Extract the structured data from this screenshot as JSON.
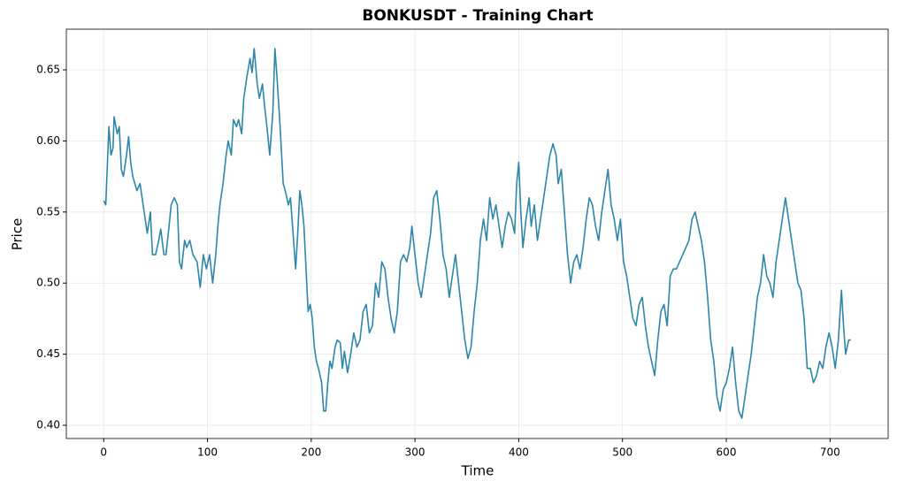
{
  "chart_data": {
    "type": "line",
    "title": "BONKUSDT - Training Chart",
    "x_label": "Time",
    "y_label": "Price",
    "grid": true,
    "xlim": [
      -36,
      756
    ],
    "ylim": [
      0.3907,
      0.6786
    ],
    "xticks": [
      0,
      100,
      200,
      300,
      400,
      500,
      600,
      700
    ],
    "yticks": [
      {
        "value": 0.4,
        "label": "0.40"
      },
      0.45,
      {
        "value": 0.5,
        "label": "0.50"
      },
      0.55,
      {
        "value": 0.6,
        "label": "0.60"
      },
      0.65
    ],
    "x": [
      0,
      2,
      5,
      7,
      9,
      10,
      13,
      15,
      17,
      19,
      22,
      24,
      26,
      28,
      30,
      32,
      35,
      37,
      40,
      42,
      45,
      47,
      50,
      53,
      55,
      58,
      60,
      63,
      65,
      68,
      71,
      73,
      75,
      78,
      80,
      83,
      86,
      90,
      93,
      96,
      99,
      102,
      105,
      108,
      110,
      112,
      115,
      118,
      120,
      123,
      125,
      128,
      130,
      133,
      135,
      138,
      141,
      143,
      145,
      148,
      150,
      153,
      155,
      158,
      160,
      163,
      165,
      167,
      170,
      173,
      175,
      178,
      180,
      183,
      185,
      187,
      189,
      191,
      193,
      195,
      197,
      199,
      201,
      203,
      205,
      207,
      210,
      212,
      214,
      216,
      218,
      220,
      223,
      225,
      228,
      230,
      232,
      235,
      238,
      241,
      244,
      247,
      250,
      253,
      256,
      259,
      262,
      265,
      268,
      271,
      274,
      277,
      280,
      283,
      286,
      289,
      292,
      295,
      297,
      300,
      303,
      306,
      309,
      312,
      315,
      318,
      321,
      324,
      327,
      330,
      333,
      336,
      339,
      342,
      345,
      348,
      351,
      354,
      357,
      360,
      363,
      366,
      369,
      372,
      375,
      378,
      381,
      384,
      387,
      390,
      393,
      396,
      398,
      400,
      402,
      404,
      407,
      410,
      412,
      415,
      418,
      421,
      424,
      427,
      430,
      433,
      436,
      438,
      441,
      444,
      447,
      450,
      453,
      456,
      459,
      462,
      465,
      468,
      471,
      474,
      477,
      480,
      483,
      486,
      489,
      492,
      495,
      498,
      501,
      504,
      507,
      510,
      513,
      516,
      519,
      522,
      525,
      528,
      531,
      534,
      537,
      540,
      543,
      546,
      549,
      552,
      555,
      558,
      561,
      564,
      567,
      570,
      573,
      576,
      579,
      582,
      585,
      588,
      591,
      594,
      597,
      600,
      603,
      606,
      609,
      612,
      615,
      618,
      621,
      624,
      627,
      630,
      633,
      636,
      639,
      642,
      645,
      648,
      651,
      654,
      657,
      660,
      663,
      666,
      669,
      672,
      675,
      678,
      681,
      684,
      687,
      690,
      693,
      696,
      699,
      702,
      705,
      708,
      711,
      713,
      715,
      718,
      720
    ],
    "series": [
      {
        "name": "Price",
        "color": "#2e86ab",
        "values": [
          0.558,
          0.555,
          0.61,
          0.59,
          0.595,
          0.617,
          0.605,
          0.61,
          0.58,
          0.575,
          0.59,
          0.603,
          0.585,
          0.575,
          0.57,
          0.565,
          0.57,
          0.56,
          0.545,
          0.535,
          0.55,
          0.52,
          0.52,
          0.53,
          0.538,
          0.52,
          0.52,
          0.54,
          0.555,
          0.56,
          0.555,
          0.515,
          0.51,
          0.53,
          0.525,
          0.53,
          0.52,
          0.515,
          0.497,
          0.52,
          0.51,
          0.52,
          0.5,
          0.52,
          0.54,
          0.555,
          0.57,
          0.59,
          0.6,
          0.59,
          0.615,
          0.61,
          0.615,
          0.605,
          0.63,
          0.645,
          0.658,
          0.648,
          0.665,
          0.64,
          0.63,
          0.64,
          0.625,
          0.605,
          0.59,
          0.62,
          0.665,
          0.645,
          0.61,
          0.57,
          0.565,
          0.555,
          0.56,
          0.53,
          0.51,
          0.535,
          0.565,
          0.555,
          0.54,
          0.51,
          0.48,
          0.485,
          0.475,
          0.455,
          0.445,
          0.44,
          0.43,
          0.41,
          0.41,
          0.43,
          0.445,
          0.44,
          0.455,
          0.46,
          0.458,
          0.44,
          0.452,
          0.437,
          0.45,
          0.465,
          0.455,
          0.46,
          0.48,
          0.485,
          0.465,
          0.47,
          0.5,
          0.49,
          0.515,
          0.51,
          0.49,
          0.475,
          0.465,
          0.48,
          0.515,
          0.52,
          0.515,
          0.525,
          0.54,
          0.52,
          0.5,
          0.49,
          0.505,
          0.52,
          0.535,
          0.56,
          0.565,
          0.545,
          0.52,
          0.51,
          0.49,
          0.505,
          0.52,
          0.5,
          0.48,
          0.46,
          0.447,
          0.455,
          0.48,
          0.5,
          0.53,
          0.545,
          0.53,
          0.56,
          0.545,
          0.555,
          0.54,
          0.525,
          0.54,
          0.55,
          0.545,
          0.535,
          0.57,
          0.585,
          0.55,
          0.525,
          0.545,
          0.56,
          0.54,
          0.555,
          0.53,
          0.545,
          0.56,
          0.575,
          0.59,
          0.598,
          0.59,
          0.57,
          0.58,
          0.55,
          0.52,
          0.5,
          0.515,
          0.52,
          0.51,
          0.525,
          0.545,
          0.56,
          0.555,
          0.54,
          0.53,
          0.55,
          0.565,
          0.58,
          0.555,
          0.545,
          0.53,
          0.545,
          0.515,
          0.505,
          0.49,
          0.475,
          0.47,
          0.485,
          0.49,
          0.47,
          0.455,
          0.445,
          0.435,
          0.46,
          0.48,
          0.485,
          0.47,
          0.505,
          0.51,
          0.51,
          0.515,
          0.52,
          0.525,
          0.53,
          0.545,
          0.55,
          0.54,
          0.53,
          0.515,
          0.49,
          0.46,
          0.445,
          0.42,
          0.41,
          0.425,
          0.43,
          0.44,
          0.455,
          0.43,
          0.41,
          0.405,
          0.42,
          0.435,
          0.45,
          0.47,
          0.49,
          0.5,
          0.52,
          0.505,
          0.5,
          0.49,
          0.515,
          0.53,
          0.545,
          0.56,
          0.545,
          0.53,
          0.515,
          0.5,
          0.495,
          0.475,
          0.44,
          0.44,
          0.43,
          0.435,
          0.445,
          0.44,
          0.455,
          0.465,
          0.455,
          0.44,
          0.46,
          0.495,
          0.47,
          0.45,
          0.46,
          0.46
        ]
      }
    ]
  }
}
